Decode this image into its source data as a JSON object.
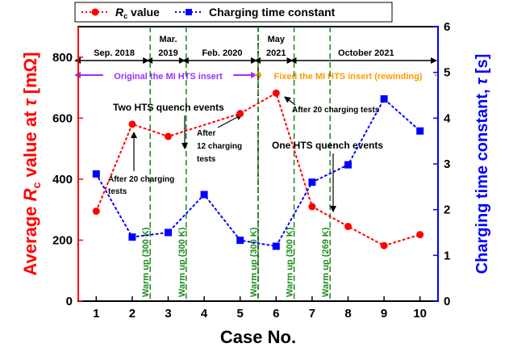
{
  "chart_data": {
    "type": "line",
    "xlabel": "Case No.",
    "ylabel_left_pre": "Average ",
    "ylabel_left_sym": "R",
    "ylabel_left_sub": "c",
    "ylabel_left_mid": " value at ",
    "ylabel_left_tau": "τ",
    "ylabel_left_unit": " [mΩ]",
    "ylabel_right_pre": "Charging time constant, ",
    "ylabel_right_tau": "τ",
    "ylabel_right_unit": " [s]",
    "x_ticks": [
      "1",
      "2",
      "3",
      "4",
      "5",
      "6",
      "7",
      "8",
      "9",
      "10"
    ],
    "y_left_ticks": [
      "0",
      "200",
      "400",
      "600",
      "800"
    ],
    "y_right_ticks": [
      "0",
      "1",
      "2",
      "3",
      "4",
      "5",
      "6"
    ],
    "xlim": [
      0.5,
      10.5
    ],
    "ylim_left": [
      0,
      900
    ],
    "ylim_right": [
      0,
      6
    ],
    "legend_position": "top",
    "series": [
      {
        "name_sym": "R",
        "name_sub": "c",
        "name_rest": " value",
        "axis": "left",
        "color": "#ff0000",
        "marker": "circle",
        "line": "dotted",
        "x": [
          1,
          2,
          3,
          5,
          6,
          7,
          8,
          9,
          10
        ],
        "y": [
          295,
          580,
          540,
          615,
          682,
          310,
          245,
          182,
          218
        ]
      },
      {
        "name": "Charging time constant",
        "axis": "right",
        "color": "#0000ff",
        "marker": "square",
        "line": "dotted",
        "x": [
          1,
          2,
          3,
          4,
          5,
          6,
          7,
          8,
          9,
          10
        ],
        "y": [
          2.78,
          1.4,
          1.5,
          2.33,
          1.33,
          1.2,
          2.6,
          2.98,
          4.42,
          3.72
        ]
      }
    ],
    "periods": [
      {
        "label": "Sep. 2018",
        "from": 0.5,
        "to": 2.5
      },
      {
        "label": "Mar.",
        "label2": "2019",
        "from": 2.5,
        "to": 3.5
      },
      {
        "label": "Feb. 2020",
        "from": 3.5,
        "to": 5.5
      },
      {
        "label": "May",
        "label2": "2021",
        "from": 5.5,
        "to": 6.5
      },
      {
        "label": "October 2021",
        "from": 6.5,
        "to": 10.5
      }
    ],
    "phases": [
      {
        "label": "Original the MI HTS insert",
        "from": 0.5,
        "to": 5.5,
        "color": "#9b30ff"
      },
      {
        "label": "Fixed the MI HTS insert (rewinding)",
        "from": 5.5,
        "to": 10.5,
        "color": "#ff9900"
      }
    ],
    "separator_x": 5.5,
    "warm_ups": [
      {
        "x": 2.5,
        "label": "Warm up (300 K)"
      },
      {
        "x": 3.5,
        "label": "Warm up (300 K)"
      },
      {
        "x": 5.5,
        "label": "Warm up (300 K)"
      },
      {
        "x": 6.5,
        "label": "Warm up (300 K)"
      },
      {
        "x": 7.5,
        "label": "Warm up (269 K)"
      }
    ],
    "annotations": {
      "two_quench": "Two HTS quench events",
      "one_quench": "One HTS quench events",
      "after20_a_l1": "After 20 charging",
      "after20_a_l2": "tests",
      "after12_l1": "After",
      "after12_l2": "12 charging",
      "after12_l3": "tests",
      "after20_b": "After 20 charging tests"
    },
    "colors": {
      "left_axis": "#ff0000",
      "right_axis": "#0000ff",
      "warm_up": "#1a8a1a",
      "separator": "#000000"
    }
  }
}
